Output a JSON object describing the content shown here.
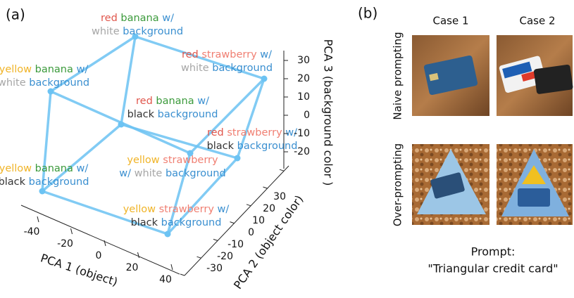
{
  "panel_a": {
    "tag": "(a)",
    "line_color": "#6cc3f3",
    "nodes": [
      {
        "line1": [
          {
            "text": "red",
            "color": "#e0564c"
          },
          {
            "text": "banana",
            "color": "#3b9a3b"
          },
          {
            "text": "w/",
            "color": "#3a8fd0"
          }
        ],
        "line2": [
          {
            "text": "white",
            "color": "#a6a6a6"
          },
          {
            "text": "background",
            "color": "#3a8fd0"
          }
        ]
      },
      {
        "line1": [
          {
            "text": "red",
            "color": "#e0564c"
          },
          {
            "text": "strawberry",
            "color": "#f07f72"
          },
          {
            "text": "w/",
            "color": "#3a8fd0"
          }
        ],
        "line2": [
          {
            "text": "white",
            "color": "#a6a6a6"
          },
          {
            "text": "background",
            "color": "#3a8fd0"
          }
        ]
      },
      {
        "line1": [
          {
            "text": "yellow",
            "color": "#f0b428"
          },
          {
            "text": "banana",
            "color": "#3b9a3b"
          },
          {
            "text": "w/",
            "color": "#3a8fd0"
          }
        ],
        "line2": [
          {
            "text": "white",
            "color": "#a6a6a6"
          },
          {
            "text": "background",
            "color": "#3a8fd0"
          }
        ]
      },
      {
        "line1": [
          {
            "text": "red",
            "color": "#e0564c"
          },
          {
            "text": "banana",
            "color": "#3b9a3b"
          },
          {
            "text": "w/",
            "color": "#3a8fd0"
          }
        ],
        "line2": [
          {
            "text": "black",
            "color": "#333333"
          },
          {
            "text": "background",
            "color": "#3a8fd0"
          }
        ]
      },
      {
        "line1": [
          {
            "text": "red",
            "color": "#e0564c"
          },
          {
            "text": "strawberry",
            "color": "#f07f72"
          },
          {
            "text": "w/",
            "color": "#3a8fd0"
          }
        ],
        "line2": [
          {
            "text": "black",
            "color": "#333333"
          },
          {
            "text": "background",
            "color": "#3a8fd0"
          }
        ]
      },
      {
        "line1": [
          {
            "text": "yellow",
            "color": "#f0b428"
          },
          {
            "text": "strawberry",
            "color": "#f07f72"
          }
        ],
        "line2": [
          {
            "text": "w/",
            "color": "#3a8fd0"
          },
          {
            "text": "white",
            "color": "#a6a6a6"
          },
          {
            "text": "background",
            "color": "#3a8fd0"
          }
        ]
      },
      {
        "line1": [
          {
            "text": "yellow",
            "color": "#f0b428"
          },
          {
            "text": "banana",
            "color": "#3b9a3b"
          },
          {
            "text": "w/",
            "color": "#3a8fd0"
          }
        ],
        "line2": [
          {
            "text": "black",
            "color": "#333333"
          },
          {
            "text": "background",
            "color": "#3a8fd0"
          }
        ]
      },
      {
        "line1": [
          {
            "text": "yellow",
            "color": "#f0b428"
          },
          {
            "text": "strawberry",
            "color": "#f07f72"
          },
          {
            "text": "w/",
            "color": "#3a8fd0"
          }
        ],
        "line2": [
          {
            "text": "black",
            "color": "#333333"
          },
          {
            "text": "background",
            "color": "#3a8fd0"
          }
        ]
      }
    ],
    "axes": {
      "x": {
        "label": "PCA 1 (object)",
        "ticks": [
          -40,
          -20,
          0,
          20,
          40
        ]
      },
      "y": {
        "label": "PCA 2 (object color)",
        "ticks": [
          -30,
          -20,
          -10,
          0,
          10,
          20,
          30
        ]
      },
      "z": {
        "label": "PCA 3 (background color )",
        "ticks": [
          30,
          20,
          10,
          0,
          -10,
          -20
        ]
      }
    }
  },
  "panel_b": {
    "tag": "(b)",
    "columns": [
      "Case 1",
      "Case 2"
    ],
    "rows": [
      "Naive prompting",
      "Over-prompting"
    ],
    "prompt": "Prompt:",
    "prompt_text": "\"Triangular credit card\""
  }
}
